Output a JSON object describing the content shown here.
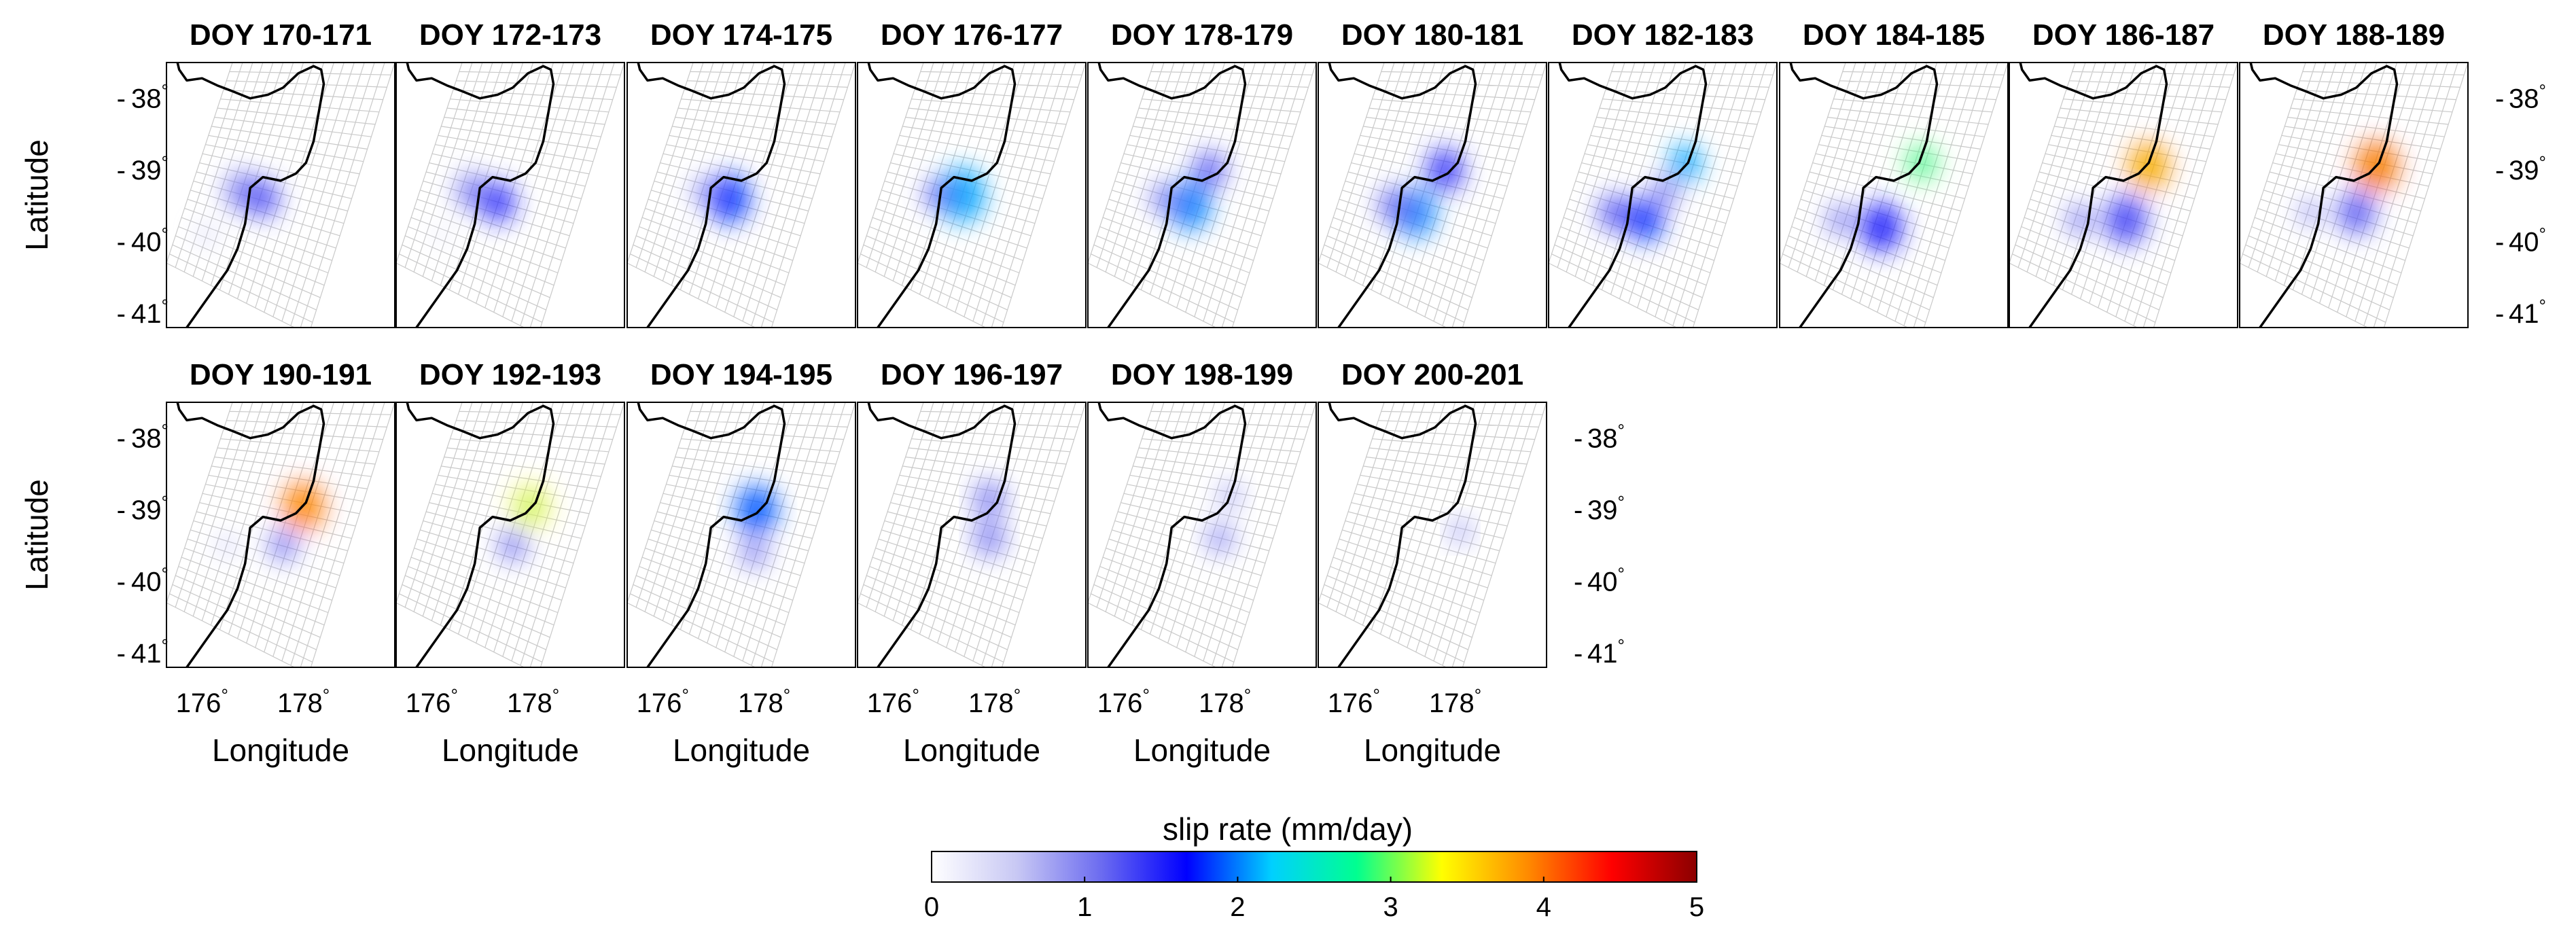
{
  "chart_data": {
    "type": "heatmap",
    "description_free": true,
    "panel_titles": [
      "DOY 170-171",
      "DOY 172-173",
      "DOY 174-175",
      "DOY 176-177",
      "DOY 178-179",
      "DOY 180-181",
      "DOY 182-183",
      "DOY 184-185",
      "DOY 186-187",
      "DOY 188-189",
      "DOY 190-191",
      "DOY 192-193",
      "DOY 194-195",
      "DOY 196-197",
      "DOY 198-199",
      "DOY 200-201"
    ],
    "x_range": [
      175.3,
      179.8
    ],
    "y_range": [
      -41.2,
      -37.5
    ],
    "xlabel": "Longitude",
    "ylabel": "Latitude",
    "x_ticks": [
      {
        "v": 176,
        "label": "176"
      },
      {
        "v": 178,
        "label": "178"
      }
    ],
    "y_ticks": [
      {
        "v": -38,
        "label": "38"
      },
      {
        "v": -39,
        "label": "39"
      },
      {
        "v": -40,
        "label": "40"
      },
      {
        "v": -41,
        "label": "41"
      }
    ],
    "degree_symbol": "°",
    "tick_mark": "-",
    "colorbar": {
      "label": "slip rate (mm/day)",
      "min": 0,
      "max": 5,
      "ticks": [
        "0",
        "1",
        "2",
        "3",
        "4",
        "5"
      ],
      "colors": [
        "#ffffff",
        "#c8c8f4",
        "#6b6bf0",
        "#0000ff",
        "#00d0ff",
        "#00ff90",
        "#ffff00",
        "#ff8c00",
        "#ff0000",
        "#8b0000"
      ]
    },
    "slip_patches": [
      [
        {
          "lon": 176.8,
          "lat": -39.3,
          "r": 0.32,
          "v": 1.0
        },
        {
          "lon": 177.2,
          "lat": -39.4,
          "r": 0.3,
          "v": 1.3
        },
        {
          "lon": 176.1,
          "lat": -39.9,
          "r": 0.15,
          "v": 0.5
        }
      ],
      [
        {
          "lon": 176.8,
          "lat": -39.3,
          "r": 0.3,
          "v": 1.0
        },
        {
          "lon": 177.3,
          "lat": -39.45,
          "r": 0.32,
          "v": 1.5
        },
        {
          "lon": 176.2,
          "lat": -39.9,
          "r": 0.12,
          "v": 0.4
        }
      ],
      [
        {
          "lon": 177.3,
          "lat": -39.4,
          "r": 0.4,
          "v": 1.8
        },
        {
          "lon": 176.8,
          "lat": -39.3,
          "r": 0.2,
          "v": 0.9
        },
        {
          "lon": 176.5,
          "lat": -39.9,
          "r": 0.1,
          "v": 0.4
        }
      ],
      [
        {
          "lon": 177.35,
          "lat": -39.35,
          "r": 0.45,
          "v": 2.1
        },
        {
          "lon": 176.9,
          "lat": -39.35,
          "r": 0.25,
          "v": 1.2
        }
      ],
      [
        {
          "lon": 177.3,
          "lat": -39.5,
          "r": 0.4,
          "v": 2.0
        },
        {
          "lon": 177.7,
          "lat": -39.0,
          "r": 0.3,
          "v": 1.2
        },
        {
          "lon": 176.8,
          "lat": -39.4,
          "r": 0.25,
          "v": 1.0
        }
      ],
      [
        {
          "lon": 177.2,
          "lat": -39.6,
          "r": 0.4,
          "v": 2.0
        },
        {
          "lon": 177.8,
          "lat": -39.0,
          "r": 0.35,
          "v": 1.4
        },
        {
          "lon": 176.8,
          "lat": -39.5,
          "r": 0.3,
          "v": 1.1
        }
      ],
      [
        {
          "lon": 178.0,
          "lat": -38.9,
          "r": 0.3,
          "v": 2.1
        },
        {
          "lon": 177.2,
          "lat": -39.7,
          "r": 0.35,
          "v": 1.8
        },
        {
          "lon": 176.6,
          "lat": -39.6,
          "r": 0.3,
          "v": 1.2
        },
        {
          "lon": 177.6,
          "lat": -39.3,
          "r": 0.25,
          "v": 1.0
        }
      ],
      [
        {
          "lon": 178.1,
          "lat": -38.9,
          "r": 0.3,
          "v": 3.0
        },
        {
          "lon": 177.3,
          "lat": -39.8,
          "r": 0.4,
          "v": 1.5
        },
        {
          "lon": 176.5,
          "lat": -39.7,
          "r": 0.25,
          "v": 1.0
        }
      ],
      [
        {
          "lon": 178.05,
          "lat": -38.95,
          "r": 0.38,
          "v": 4.1
        },
        {
          "lon": 177.6,
          "lat": -39.7,
          "r": 0.4,
          "v": 1.3
        },
        {
          "lon": 176.7,
          "lat": -39.7,
          "r": 0.25,
          "v": 1.0
        }
      ],
      [
        {
          "lon": 178.0,
          "lat": -38.95,
          "r": 0.4,
          "v": 4.5
        },
        {
          "lon": 177.6,
          "lat": -39.6,
          "r": 0.35,
          "v": 1.2
        },
        {
          "lon": 176.7,
          "lat": -39.6,
          "r": 0.2,
          "v": 0.9
        }
      ],
      [
        {
          "lon": 178.0,
          "lat": -38.95,
          "r": 0.38,
          "v": 4.4
        },
        {
          "lon": 177.6,
          "lat": -39.5,
          "r": 0.25,
          "v": 1.1
        },
        {
          "lon": 176.5,
          "lat": -39.5,
          "r": 0.12,
          "v": 0.8
        }
      ],
      [
        {
          "lon": 177.95,
          "lat": -38.95,
          "r": 0.35,
          "v": 3.4
        },
        {
          "lon": 177.6,
          "lat": -39.5,
          "r": 0.25,
          "v": 1.1
        }
      ],
      [
        {
          "lon": 177.85,
          "lat": -39.0,
          "r": 0.4,
          "v": 1.9
        },
        {
          "lon": 177.8,
          "lat": -39.6,
          "r": 0.25,
          "v": 1.0
        }
      ],
      [
        {
          "lon": 177.9,
          "lat": -38.85,
          "r": 0.3,
          "v": 1.0
        },
        {
          "lon": 177.9,
          "lat": -39.4,
          "r": 0.3,
          "v": 1.0
        }
      ],
      [
        {
          "lon": 178.1,
          "lat": -38.8,
          "r": 0.2,
          "v": 0.8
        },
        {
          "lon": 177.9,
          "lat": -39.4,
          "r": 0.25,
          "v": 0.9
        }
      ],
      [
        {
          "lon": 178.1,
          "lat": -39.3,
          "r": 0.2,
          "v": 0.8
        }
      ]
    ],
    "coastline": [
      [
        175.5,
        -37.45
      ],
      [
        175.55,
        -37.6
      ],
      [
        175.7,
        -37.75
      ],
      [
        176.0,
        -37.72
      ],
      [
        176.3,
        -37.82
      ],
      [
        176.6,
        -37.9
      ],
      [
        176.95,
        -38.0
      ],
      [
        177.3,
        -37.95
      ],
      [
        177.6,
        -37.85
      ],
      [
        177.9,
        -37.65
      ],
      [
        178.2,
        -37.55
      ],
      [
        178.35,
        -37.6
      ],
      [
        178.4,
        -37.8
      ],
      [
        178.3,
        -38.2
      ],
      [
        178.2,
        -38.6
      ],
      [
        178.05,
        -38.9
      ],
      [
        177.85,
        -39.05
      ],
      [
        177.55,
        -39.15
      ],
      [
        177.2,
        -39.1
      ],
      [
        176.95,
        -39.25
      ],
      [
        176.9,
        -39.5
      ],
      [
        176.85,
        -39.75
      ],
      [
        176.7,
        -40.1
      ],
      [
        176.5,
        -40.4
      ],
      [
        176.2,
        -40.7
      ],
      [
        175.9,
        -41.0
      ],
      [
        175.6,
        -41.3
      ]
    ]
  }
}
